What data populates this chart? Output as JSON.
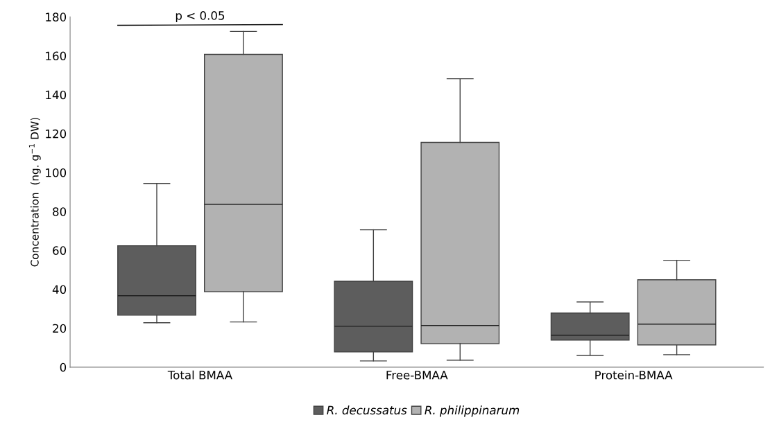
{
  "chart_data": {
    "type": "box",
    "ylabel": "Concentration  (ng. g$^{−1}$ DW)",
    "categories": [
      "Total BMAA",
      "Free-BMAA",
      "Protein-BMAA"
    ],
    "series": [
      {
        "name": "R. decussatus",
        "color": "#5d5d5d",
        "boxes": [
          {
            "low": 22.8,
            "q1": 26.7,
            "median": 36.7,
            "q3": 62.4,
            "high": 94.4
          },
          {
            "low": 3.2,
            "q1": 7.8,
            "median": 21.0,
            "q3": 44.2,
            "high": 70.6
          },
          {
            "low": 6.1,
            "q1": 13.9,
            "median": 16.4,
            "q3": 27.8,
            "high": 33.5
          }
        ]
      },
      {
        "name": "R. philippinarum",
        "color": "#b2b2b2",
        "boxes": [
          {
            "low": 23.2,
            "q1": 38.8,
            "median": 83.7,
            "q3": 160.7,
            "high": 172.5
          },
          {
            "low": 3.6,
            "q1": 12.1,
            "median": 21.4,
            "q3": 115.5,
            "high": 148.2
          },
          {
            "low": 6.4,
            "q1": 11.4,
            "median": 22.1,
            "q3": 44.9,
            "high": 54.9
          }
        ]
      }
    ],
    "ylim": [
      0,
      180
    ],
    "yticks": [
      0,
      20,
      40,
      60,
      80,
      100,
      120,
      140,
      160,
      180
    ],
    "grid": false,
    "legend": "bottom",
    "annotations": [
      "p < 0.05"
    ]
  }
}
